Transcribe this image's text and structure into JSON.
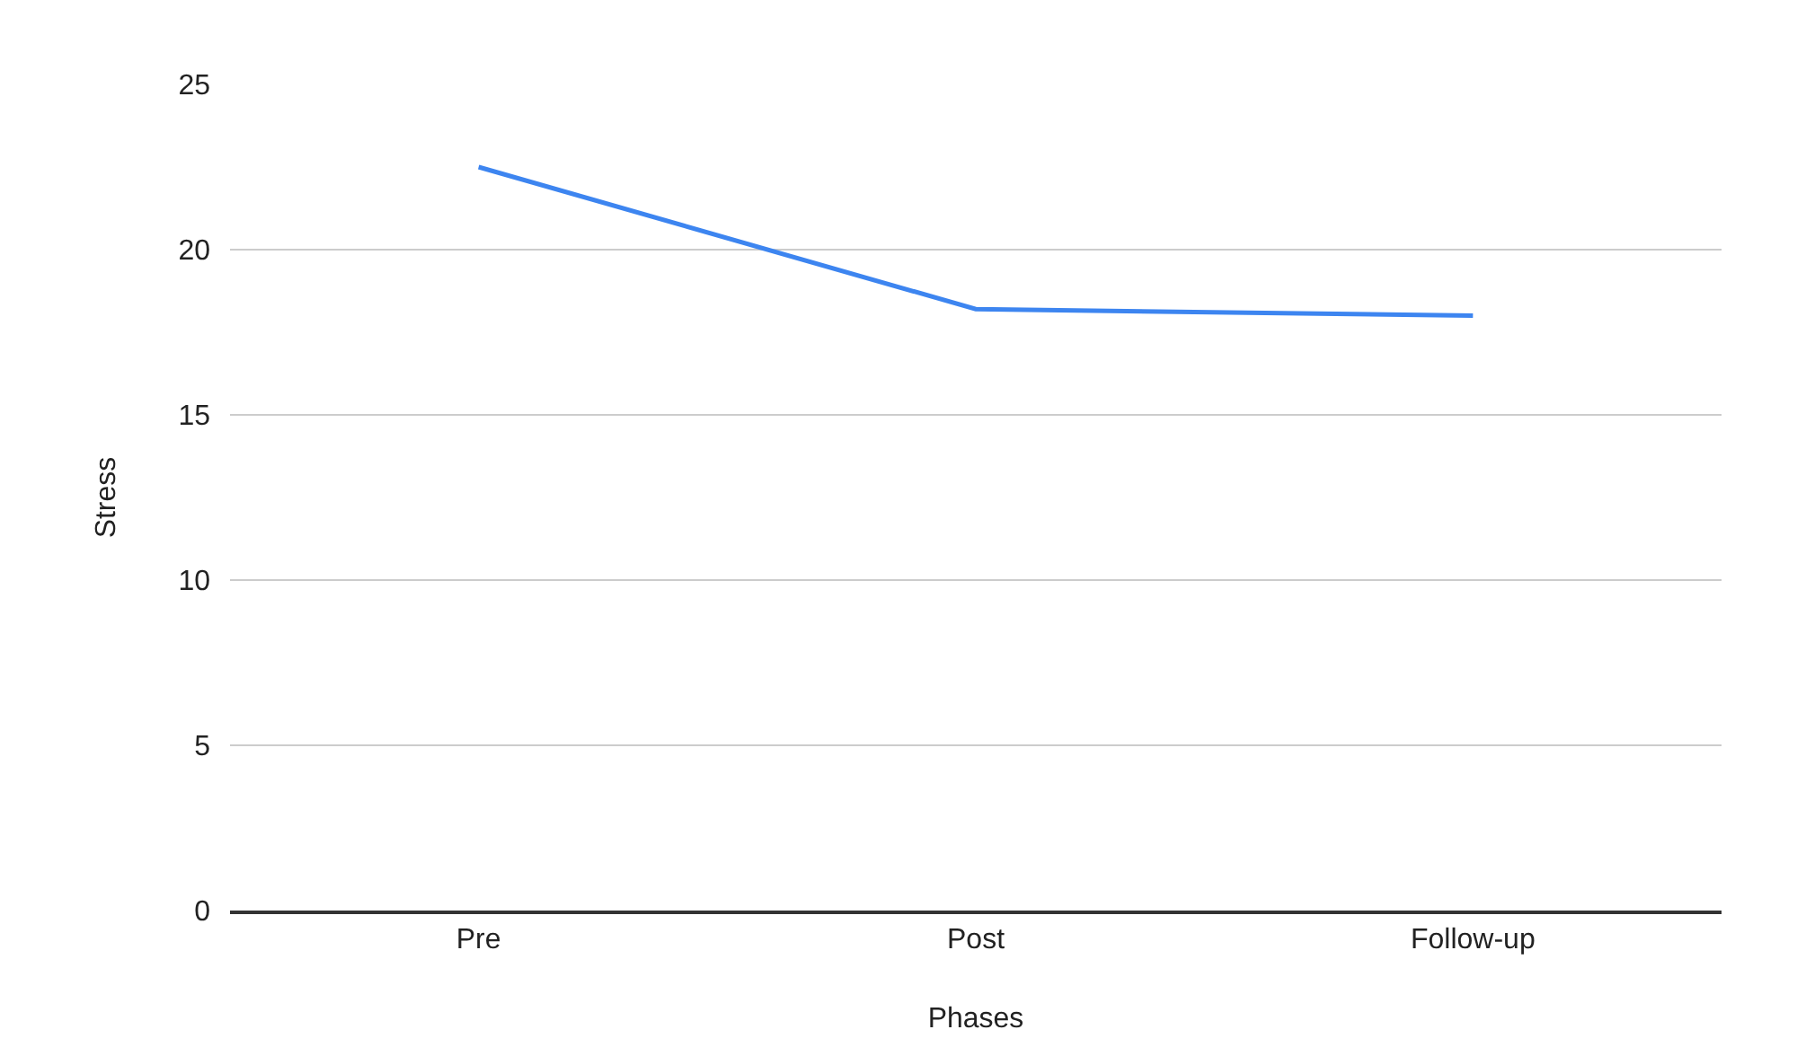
{
  "chart_data": {
    "type": "line",
    "xlabel": "Phases",
    "ylabel": "Stress",
    "categories": [
      "Pre",
      "Post",
      "Follow-up"
    ],
    "series": [
      {
        "color": "#3d85f0",
        "values": [
          22.5,
          18.2,
          18.0
        ]
      }
    ],
    "ylim": [
      0,
      25
    ],
    "yticks": [
      0,
      5,
      10,
      15,
      20,
      25
    ],
    "grid": "y",
    "marker": "none",
    "line_style": "solid"
  }
}
